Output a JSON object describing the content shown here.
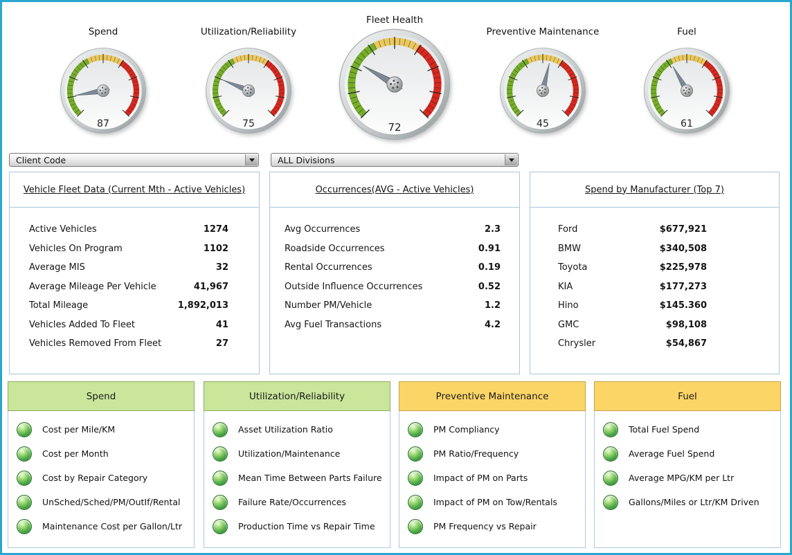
{
  "gauges": {
    "items": [
      {
        "label": "Spend",
        "value": 87
      },
      {
        "label": "Utilization/Reliability",
        "value": 75
      },
      {
        "label": "Fleet Health",
        "value": 72
      },
      {
        "label": "Preventive Maintenance",
        "value": 45
      },
      {
        "label": "Fuel",
        "value": 61
      }
    ],
    "scale": {
      "min": 0,
      "max": 100,
      "bands": [
        {
          "from": 60,
          "to": 100,
          "zone": "green",
          "color": "#76ae2b"
        },
        {
          "from": 38,
          "to": 60,
          "zone": "yellow",
          "color": "#e9c85e"
        },
        {
          "from": 0,
          "to": 38,
          "zone": "red",
          "color": "#d6281e"
        }
      ]
    }
  },
  "filters": {
    "client_code": "Client Code",
    "divisions": "ALL Divisions"
  },
  "panels": {
    "fleet_data": {
      "title": "Vehicle Fleet Data (Current Mth - Active Vehicles)",
      "rows": [
        {
          "label": "Active Vehicles",
          "value": "1274"
        },
        {
          "label": "Vehicles On Program",
          "value": "1102"
        },
        {
          "label": "Average MIS",
          "value": "32"
        },
        {
          "label": "Average Mileage Per Vehicle",
          "value": "41,967"
        },
        {
          "label": "Total Mileage",
          "value": "1,892,013"
        },
        {
          "label": "Vehicles Added To Fleet",
          "value": "41"
        },
        {
          "label": "Vehicles Removed From Fleet",
          "value": "27"
        }
      ]
    },
    "occurrences": {
      "title": "Occurrences(AVG - Active Vehicles)",
      "rows": [
        {
          "label": "Avg Occurrences",
          "value": "2.3"
        },
        {
          "label": "Roadside Occurrences",
          "value": "0.91"
        },
        {
          "label": "Rental Occurrences",
          "value": "0.19"
        },
        {
          "label": "Outside Influence Occurrences",
          "value": "0.52"
        },
        {
          "label": "Number PM/Vehicle",
          "value": "1.2"
        },
        {
          "label": "Avg Fuel Transactions",
          "value": "4.2"
        }
      ]
    },
    "spend_by_manufacturer": {
      "title": "Spend by Manufacturer (Top 7)",
      "rows": [
        {
          "label": "Ford",
          "value": "$677,921"
        },
        {
          "label": "BMW",
          "value": "$340,508"
        },
        {
          "label": "Toyota",
          "value": "$225,978"
        },
        {
          "label": "KIA",
          "value": "$177,273"
        },
        {
          "label": "Hino",
          "value": "$145.360"
        },
        {
          "label": "GMC",
          "value": "$98,108"
        },
        {
          "label": "Chrysler",
          "value": "$54,867"
        }
      ]
    }
  },
  "kpi_sections": [
    {
      "title": "Spend",
      "header_bg": "#c9e69b",
      "header_border": "#8fa95c",
      "items": [
        "Cost per Mile/KM",
        "Cost per Month",
        "Cost by Repair Category",
        "UnSched/Sched/PM/OutIf/Rental",
        "Maintenance Cost per Gallon/Ltr"
      ]
    },
    {
      "title": "Utilization/Reliability",
      "header_bg": "#c9e69b",
      "header_border": "#8fa95c",
      "items": [
        "Asset Utilization Ratio",
        "Utilization/Maintenance",
        "Mean Time Between Parts Failure",
        "Failure Rate/Occurrences",
        "Production Time vs Repair Time"
      ]
    },
    {
      "title": "Preventive Maintenance",
      "header_bg": "#fcd567",
      "header_border": "#c3a348",
      "items": [
        "PM Compliancy",
        "PM Ratio/Frequency",
        "Impact of PM on Parts",
        "Impact of PM on Tow/Rentals",
        "PM Frequency vs Repair"
      ]
    },
    {
      "title": "Fuel",
      "header_bg": "#fcd567",
      "header_border": "#c3a348",
      "items": [
        "Total Fuel Spend",
        "Average Fuel Spend",
        "Average MPG/KM per Ltr",
        "Gallons/Miles or Ltr/KM Driven"
      ]
    }
  ]
}
